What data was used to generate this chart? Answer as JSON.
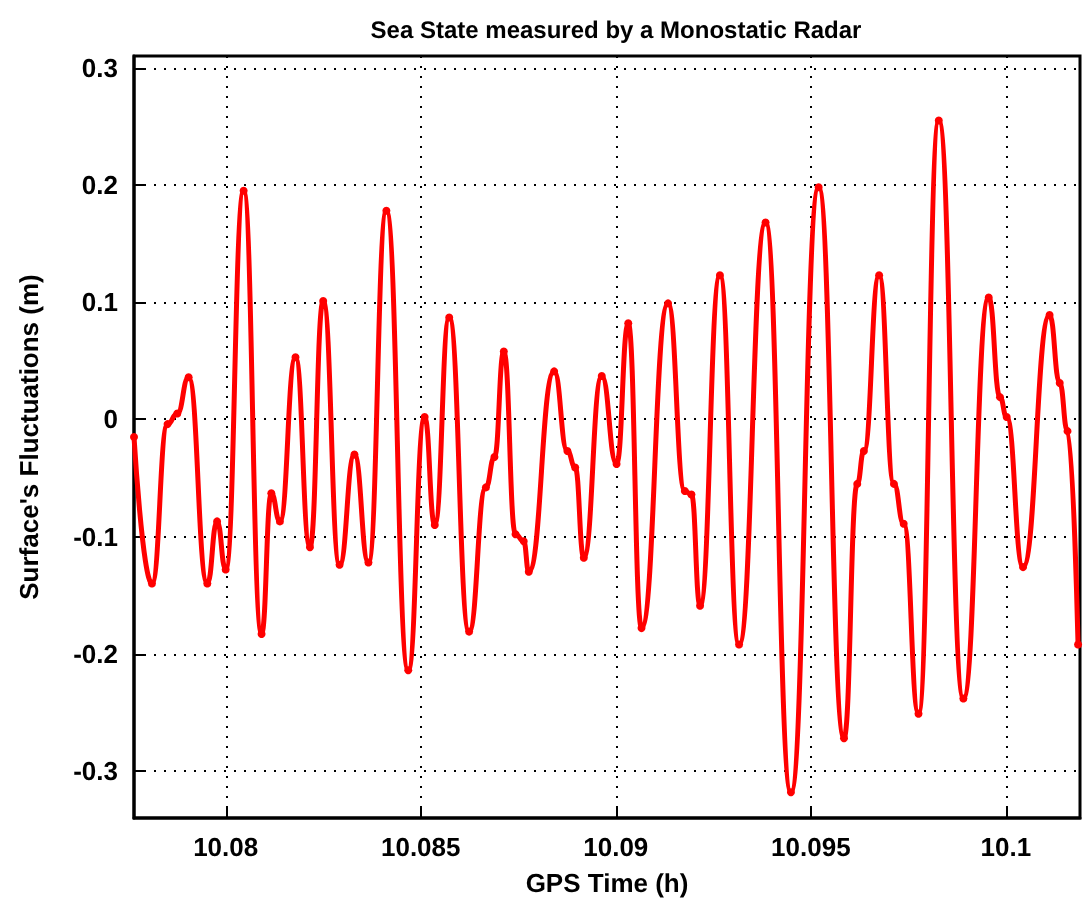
{
  "chart_data": {
    "type": "line",
    "title": "Sea State measured by a Monostatic Radar",
    "xlabel": "GPS Time (h)",
    "ylabel": "Surface's Fluctuations (m)",
    "x": [
      10.07765,
      10.07811,
      10.07851,
      10.07876,
      10.07905,
      10.07953,
      10.07978,
      10.08,
      10.08046,
      10.08092,
      10.08117,
      10.08139,
      10.08179,
      10.08216,
      10.0825,
      10.08292,
      10.0833,
      10.08366,
      10.08412,
      10.08468,
      10.0851,
      10.08536,
      10.08573,
      10.08624,
      10.08667,
      10.08689,
      10.08713,
      10.08743,
      10.08764,
      10.08777,
      10.08842,
      10.08876,
      10.08896,
      10.08918,
      10.08964,
      10.09002,
      10.09032,
      10.09066,
      10.09134,
      10.09177,
      10.09194,
      10.09216,
      10.09267,
      10.09316,
      10.09384,
      10.09449,
      10.0952,
      10.09585,
      10.09619,
      10.09636,
      10.09675,
      10.09713,
      10.09738,
      10.09776,
      10.09828,
      10.09891,
      10.09956,
      10.09985,
      10.10002,
      10.10044,
      10.10112,
      10.10138,
      10.10158,
      10.10185
    ],
    "series": [
      {
        "color": "#ff0000",
        "values": [
          -0.015,
          -0.14,
          -0.004,
          0.005,
          0.036,
          -0.14,
          -0.087,
          -0.128,
          0.195,
          -0.183,
          -0.063,
          -0.087,
          0.053,
          -0.109,
          0.101,
          -0.124,
          -0.03,
          -0.122,
          0.178,
          -0.214,
          0.002,
          -0.09,
          0.087,
          -0.181,
          -0.058,
          -0.032,
          0.058,
          -0.098,
          -0.104,
          -0.13,
          0.041,
          -0.027,
          -0.041,
          -0.118,
          0.037,
          -0.038,
          0.082,
          -0.178,
          0.099,
          -0.061,
          -0.064,
          -0.159,
          0.123,
          -0.192,
          0.168,
          -0.318,
          0.198,
          -0.272,
          -0.055,
          -0.027,
          0.123,
          -0.055,
          -0.089,
          -0.251,
          0.255,
          -0.238,
          0.104,
          0.019,
          0.002,
          -0.126,
          0.089,
          0.031,
          -0.01,
          -0.192
        ]
      }
    ],
    "xlim": [
      10.07765,
      10.1019
    ],
    "xticks": [
      10.08,
      10.085,
      10.09,
      10.095,
      10.1
    ],
    "ylim": [
      -0.34,
      0.31
    ],
    "yticks": [
      -0.3,
      -0.2,
      -0.1,
      0,
      0.1,
      0.2,
      0.3
    ],
    "grid": true,
    "marker": "circle"
  }
}
